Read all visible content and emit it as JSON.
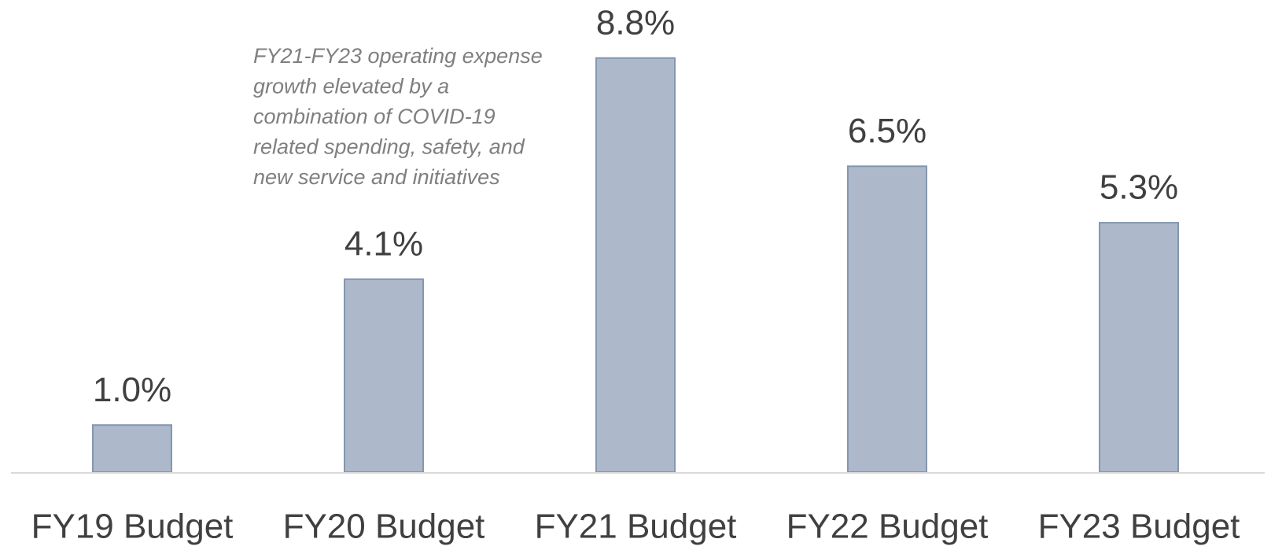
{
  "chart_data": {
    "type": "bar",
    "annotation": [
      "FY21-FY23 operating expense",
      "growth elevated by a",
      "combination of COVID-19",
      "related spending, safety, and",
      "new service and initiatives"
    ],
    "categories": [
      "FY19 Budget",
      "FY20 Budget",
      "FY21 Budget",
      "FY22 Budget",
      "FY23 Budget"
    ],
    "values": [
      1.0,
      4.1,
      8.8,
      6.5,
      5.3
    ],
    "value_labels": [
      "1.0%",
      "4.1%",
      "8.8%",
      "6.5%",
      "5.3%"
    ],
    "color": "#adb9ca"
  }
}
